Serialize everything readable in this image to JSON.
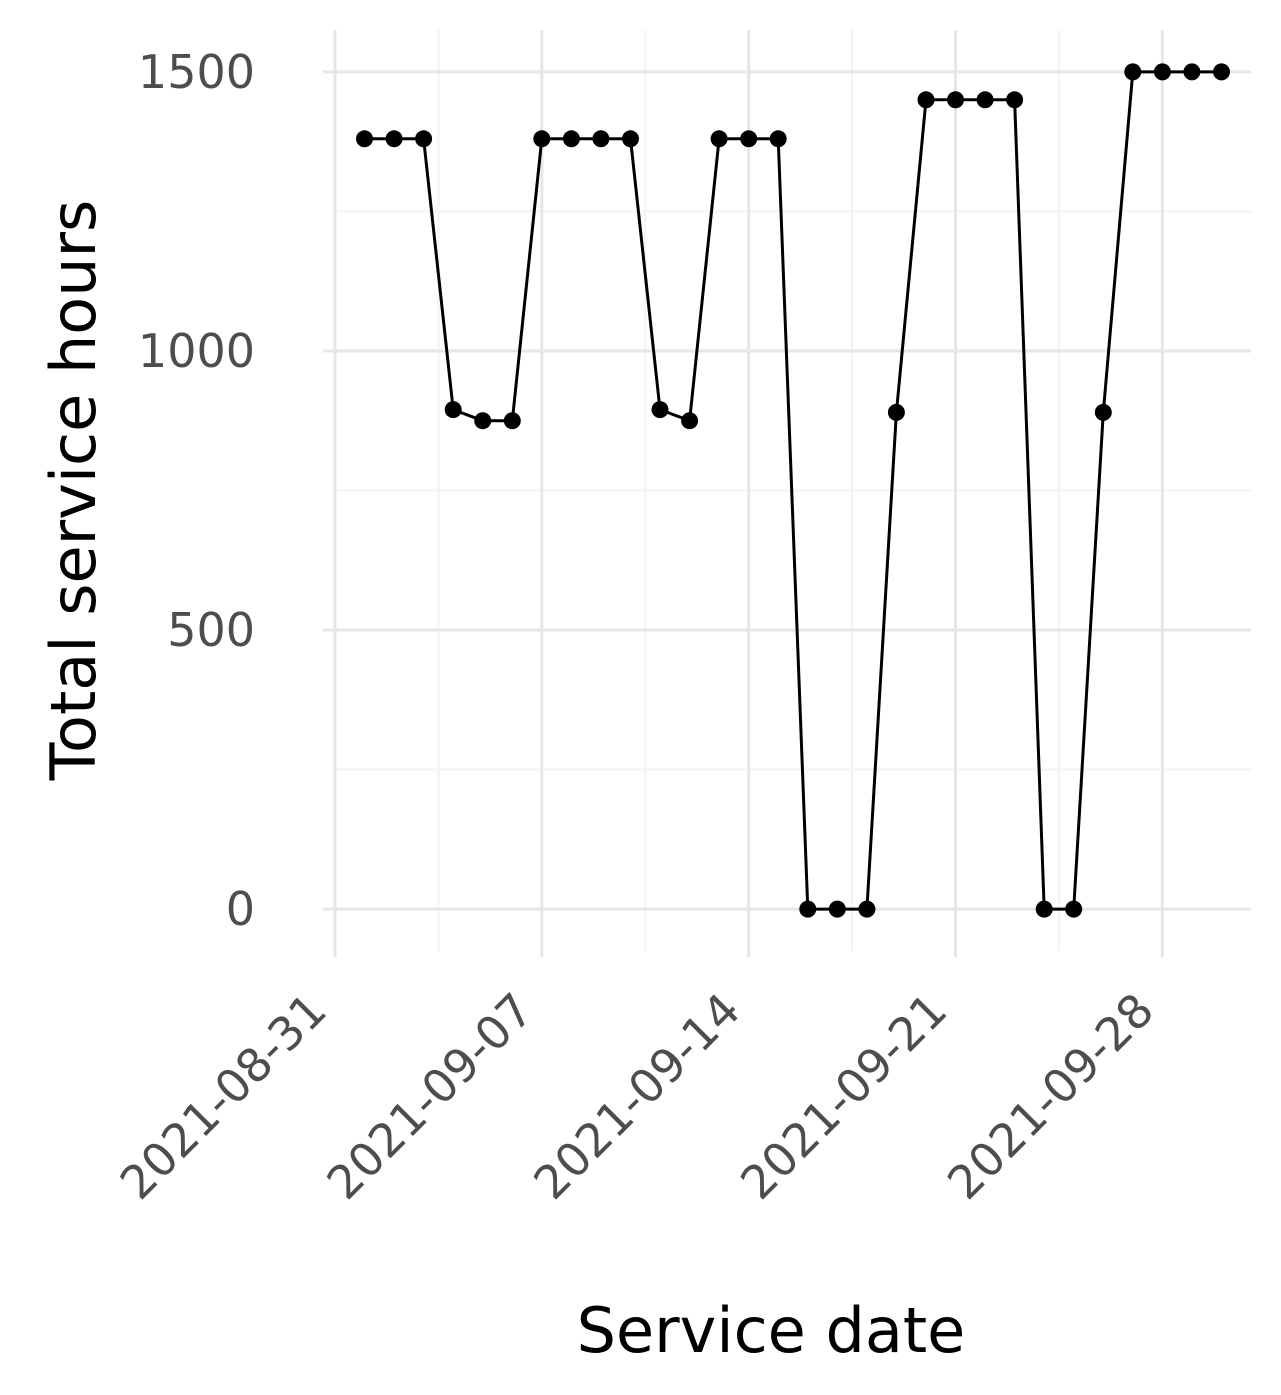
{
  "chart_data": {
    "type": "line",
    "title": "",
    "xlabel": "Service date",
    "ylabel": "Total service hours",
    "x_tick_labels": [
      "2021-08-31",
      "2021-09-07",
      "2021-09-14",
      "2021-09-21",
      "2021-09-28"
    ],
    "y_ticks": [
      0,
      500,
      1000,
      1500
    ],
    "y_tick_labels": [
      "0",
      "500",
      "1000",
      "1500"
    ],
    "xlim": [
      "2021-08-31",
      "2021-10-01"
    ],
    "ylim": [
      -75,
      1575
    ],
    "grid": true,
    "series": [
      {
        "name": "Total service hours",
        "color": "#000000",
        "dates": [
          "2021-09-01",
          "2021-09-02",
          "2021-09-03",
          "2021-09-04",
          "2021-09-05",
          "2021-09-06",
          "2021-09-07",
          "2021-09-08",
          "2021-09-09",
          "2021-09-10",
          "2021-09-11",
          "2021-09-12",
          "2021-09-13",
          "2021-09-14",
          "2021-09-15",
          "2021-09-16",
          "2021-09-17",
          "2021-09-18",
          "2021-09-19",
          "2021-09-20",
          "2021-09-21",
          "2021-09-22",
          "2021-09-23",
          "2021-09-24",
          "2021-09-25",
          "2021-09-26",
          "2021-09-27",
          "2021-09-28",
          "2021-09-29",
          "2021-09-30"
        ],
        "values": [
          1380,
          1380,
          1380,
          895,
          875,
          875,
          1380,
          1380,
          1380,
          1380,
          895,
          875,
          1380,
          1380,
          1380,
          0,
          0,
          0,
          890,
          1450,
          1450,
          1450,
          1450,
          0,
          0,
          890,
          1500,
          1500,
          1500,
          1500
        ]
      }
    ]
  }
}
